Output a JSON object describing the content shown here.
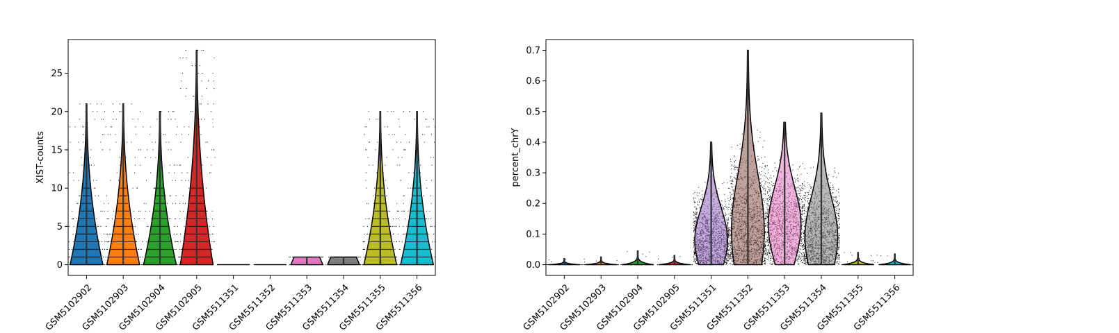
{
  "chart_data": [
    {
      "type": "violin",
      "ylabel": "XIST-counts",
      "xlabel": "",
      "ylim": [
        -1.4,
        29.4
      ],
      "yticks": [
        "0",
        "5",
        "10",
        "15",
        "20",
        "25"
      ],
      "categories": [
        "GSM5102902",
        "GSM5102903",
        "GSM5102904",
        "GSM5102905",
        "GSM5511351",
        "GSM5511352",
        "GSM5511353",
        "GSM5511354",
        "GSM5511355",
        "GSM5511356"
      ],
      "colors": [
        "#1f77b4",
        "#ff7f0e",
        "#2ca02c",
        "#d62728",
        "#9467bd",
        "#8c564b",
        "#e377c2",
        "#7f7f7f",
        "#bcbd22",
        "#17becf"
      ],
      "max_values": [
        21,
        21,
        20,
        28,
        0,
        0,
        1,
        1,
        20,
        20
      ],
      "median_values": [
        0,
        0,
        1,
        1,
        0,
        0,
        0,
        0,
        1,
        1
      ],
      "grid": false,
      "legend": "none"
    },
    {
      "type": "violin",
      "ylabel": "percent_chrY",
      "xlabel": "",
      "ylim": [
        -0.035,
        0.735
      ],
      "yticks": [
        "0.0",
        "0.1",
        "0.2",
        "0.3",
        "0.4",
        "0.5",
        "0.6",
        "0.7"
      ],
      "categories": [
        "GSM5102902",
        "GSM5102903",
        "GSM5102904",
        "GSM5102905",
        "GSM5511351",
        "GSM5511352",
        "GSM5511353",
        "GSM5511354",
        "GSM5511355",
        "GSM5511356"
      ],
      "colors": [
        "#1f77b4",
        "#ff7f0e",
        "#2ca02c",
        "#d62728",
        "#9467bd",
        "#8c564b",
        "#e377c2",
        "#7f7f7f",
        "#bcbd22",
        "#17becf"
      ],
      "max_values": [
        0.02,
        0.025,
        0.045,
        0.03,
        0.4,
        0.7,
        0.465,
        0.495,
        0.04,
        0.035
      ],
      "median_values": [
        0,
        0,
        0,
        0,
        0.08,
        0.11,
        0.13,
        0.09,
        0,
        0
      ],
      "grid": false,
      "legend": "none"
    }
  ]
}
